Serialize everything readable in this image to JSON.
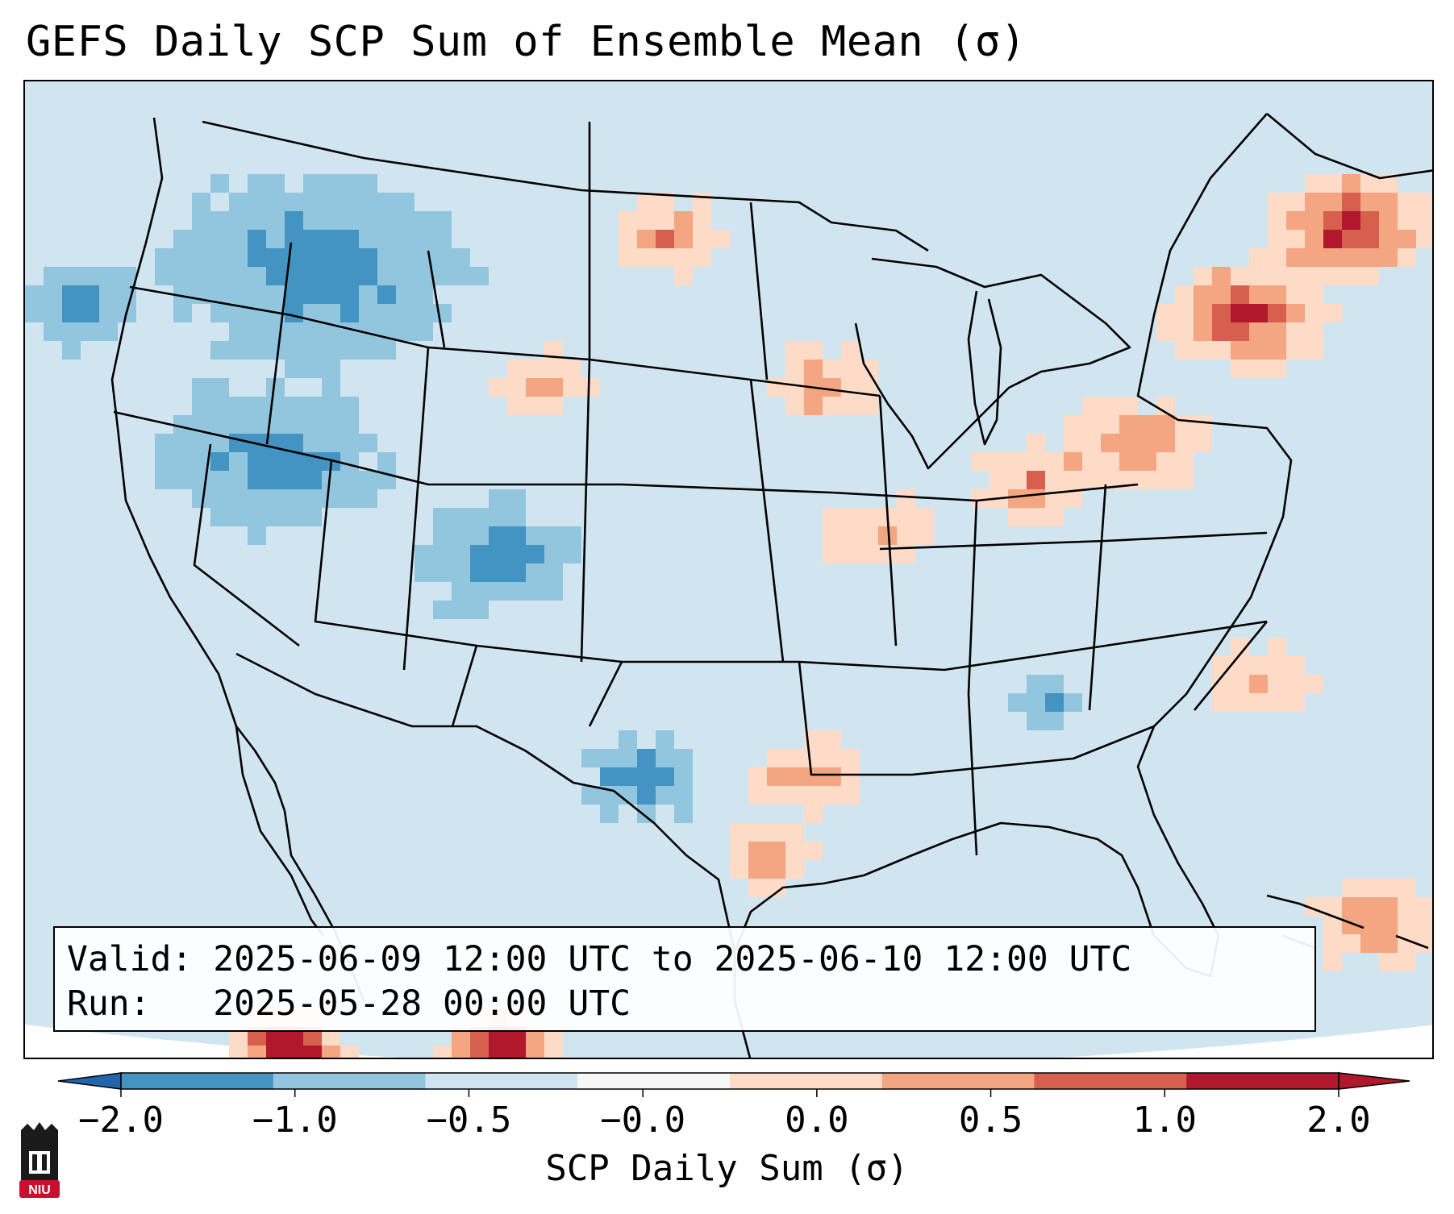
{
  "title": "GEFS Daily SCP Sum of Ensemble Mean (σ)",
  "info": {
    "valid_line": "Valid: 2025-06-09 12:00 UTC to 2025-06-10 12:00 UTC",
    "run_line": "Run:   2025-05-28 00:00 UTC"
  },
  "colorbar": {
    "label": "SCP Daily Sum (σ)",
    "ticks": [
      "−2.0",
      "−1.0",
      "−0.5",
      "−0.0",
      "0.0",
      "0.5",
      "1.0",
      "2.0"
    ],
    "colors": [
      "#4393c3",
      "#92c5de",
      "#d1e5f0",
      "#f7f7f7",
      "#fddbc7",
      "#f4a582",
      "#d6604d",
      "#b2182b"
    ],
    "under_color": "#2166ac",
    "over_color": "#b2182b"
  },
  "logo": {
    "text": "NIU",
    "color": "#c8102e"
  },
  "map": {
    "background_color": "#d1e5f0",
    "outside_color": "#ffffff",
    "border_color": "#000000"
  }
}
